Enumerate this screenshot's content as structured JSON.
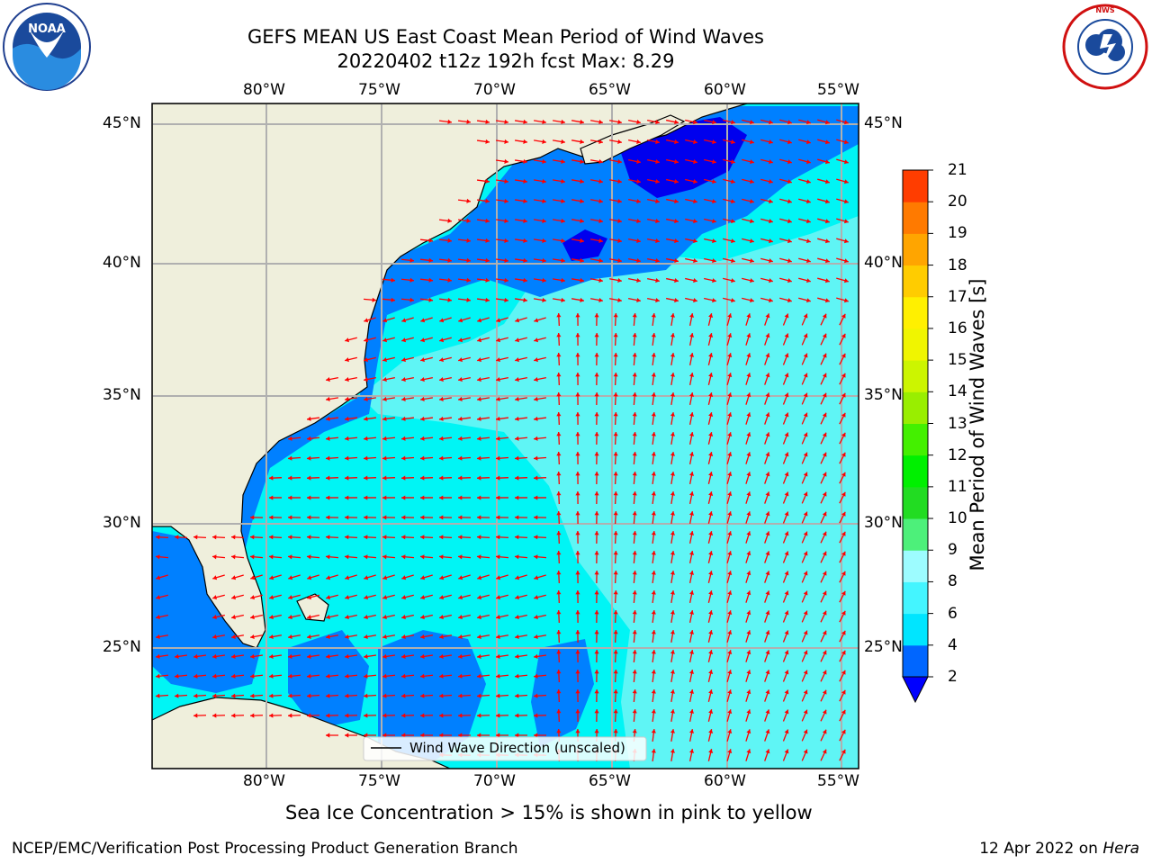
{
  "header": {
    "title_line1": "GEFS MEAN US East Coast Mean Period of Wind Waves",
    "title_line2": "20220402 t12z 192h fcst   Max: 8.29"
  },
  "map": {
    "lon_labels": [
      "80°W",
      "75°W",
      "70°W",
      "65°W",
      "60°W",
      "55°W"
    ],
    "lat_labels": [
      "45°N",
      "40°N",
      "35°N",
      "30°N",
      "25°N"
    ],
    "legend_label": "Wind Wave Direction (unscaled)",
    "colors": {
      "land": "#efefdc",
      "cyan": "#00f5f5",
      "light_cyan": "#5ff5f5",
      "blue": "#0080ff",
      "dark_blue": "#0000ee",
      "arrow": "#ff0000",
      "grid": "#b0b0b0"
    }
  },
  "colorbar": {
    "label": "Mean Period of Wind Waves [s]",
    "ticks": [
      "2",
      "4",
      "6",
      "8",
      "9",
      "10",
      "11",
      "12",
      "13",
      "14",
      "15",
      "16",
      "17",
      "18",
      "19",
      "20",
      "21"
    ],
    "colors": [
      "#0066ff",
      "#00e5ff",
      "#44f5ff",
      "#9dfcff",
      "#4df07a",
      "#22dc22",
      "#00f000",
      "#44f000",
      "#99ee00",
      "#ccf500",
      "#f0f500",
      "#fff000",
      "#ffcc00",
      "#ffa500",
      "#ff7a00",
      "#ff3d00",
      "#ff0000"
    ],
    "extend_color": "#0000ff"
  },
  "captions": {
    "sea_ice": "Sea Ice Concentration > 15% is shown in pink to yellow",
    "left": "NCEP/EMC/Verification Post Processing Product Generation Branch",
    "right_date": "12 Apr 2022 on ",
    "right_machine": "Hera"
  },
  "logos": {
    "noaa": "NOAA",
    "nws": "NATIONAL WEATHER SERVICE"
  }
}
